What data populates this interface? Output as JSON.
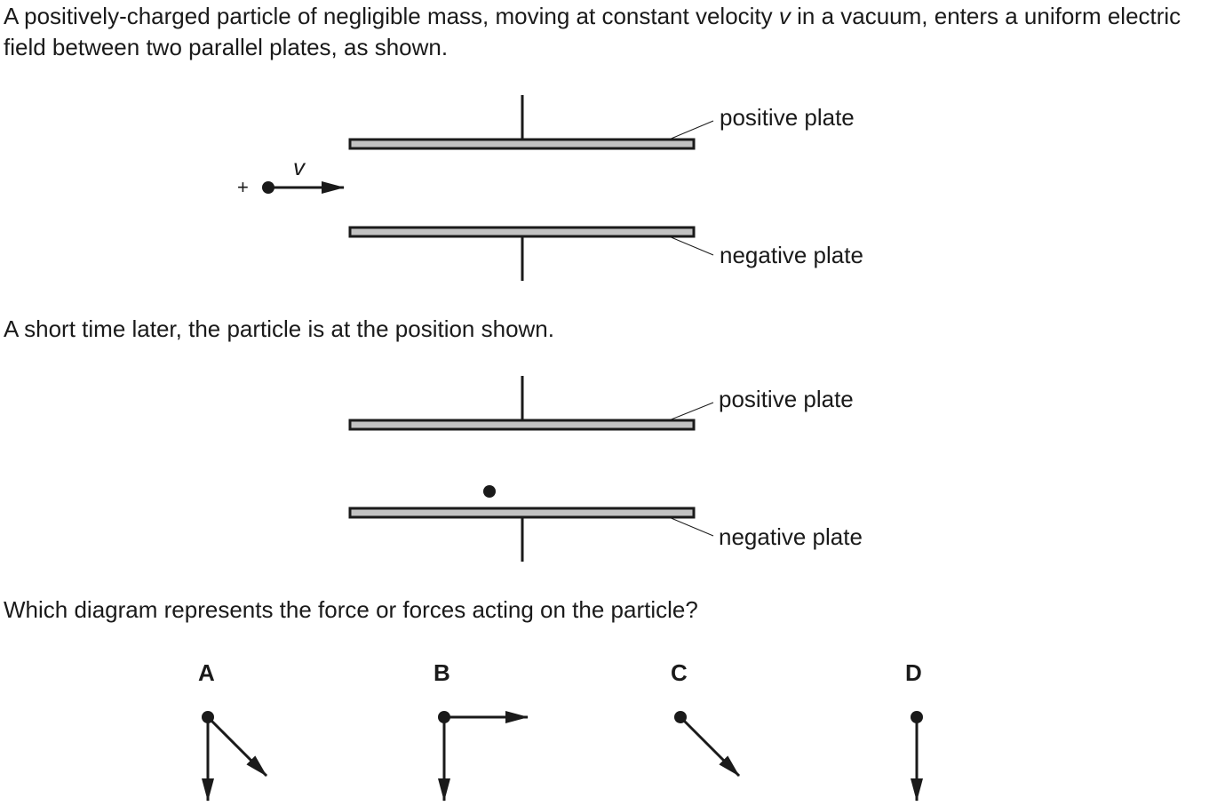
{
  "intro": {
    "part1": "A positively-charged particle of negligible mass, moving at constant velocity ",
    "v": "v",
    "part2": " in a vacuum, enters a uniform electric field between two parallel plates, as shown."
  },
  "later_text": "A short time later, the particle is at the position shown.",
  "question_text": "Which diagram represents the force or forces acting on the particle?",
  "diagram1": {
    "positive_label": "positive plate",
    "negative_label": "negative plate",
    "charge_sign": "+",
    "velocity_label": "v"
  },
  "diagram2": {
    "positive_label": "positive plate",
    "negative_label": "negative plate"
  },
  "options": [
    {
      "label": "A",
      "arrows": [
        "down",
        "down-right"
      ]
    },
    {
      "label": "B",
      "arrows": [
        "down",
        "right"
      ]
    },
    {
      "label": "C",
      "arrows": [
        "down-right"
      ]
    },
    {
      "label": "D",
      "arrows": [
        "down"
      ]
    }
  ]
}
